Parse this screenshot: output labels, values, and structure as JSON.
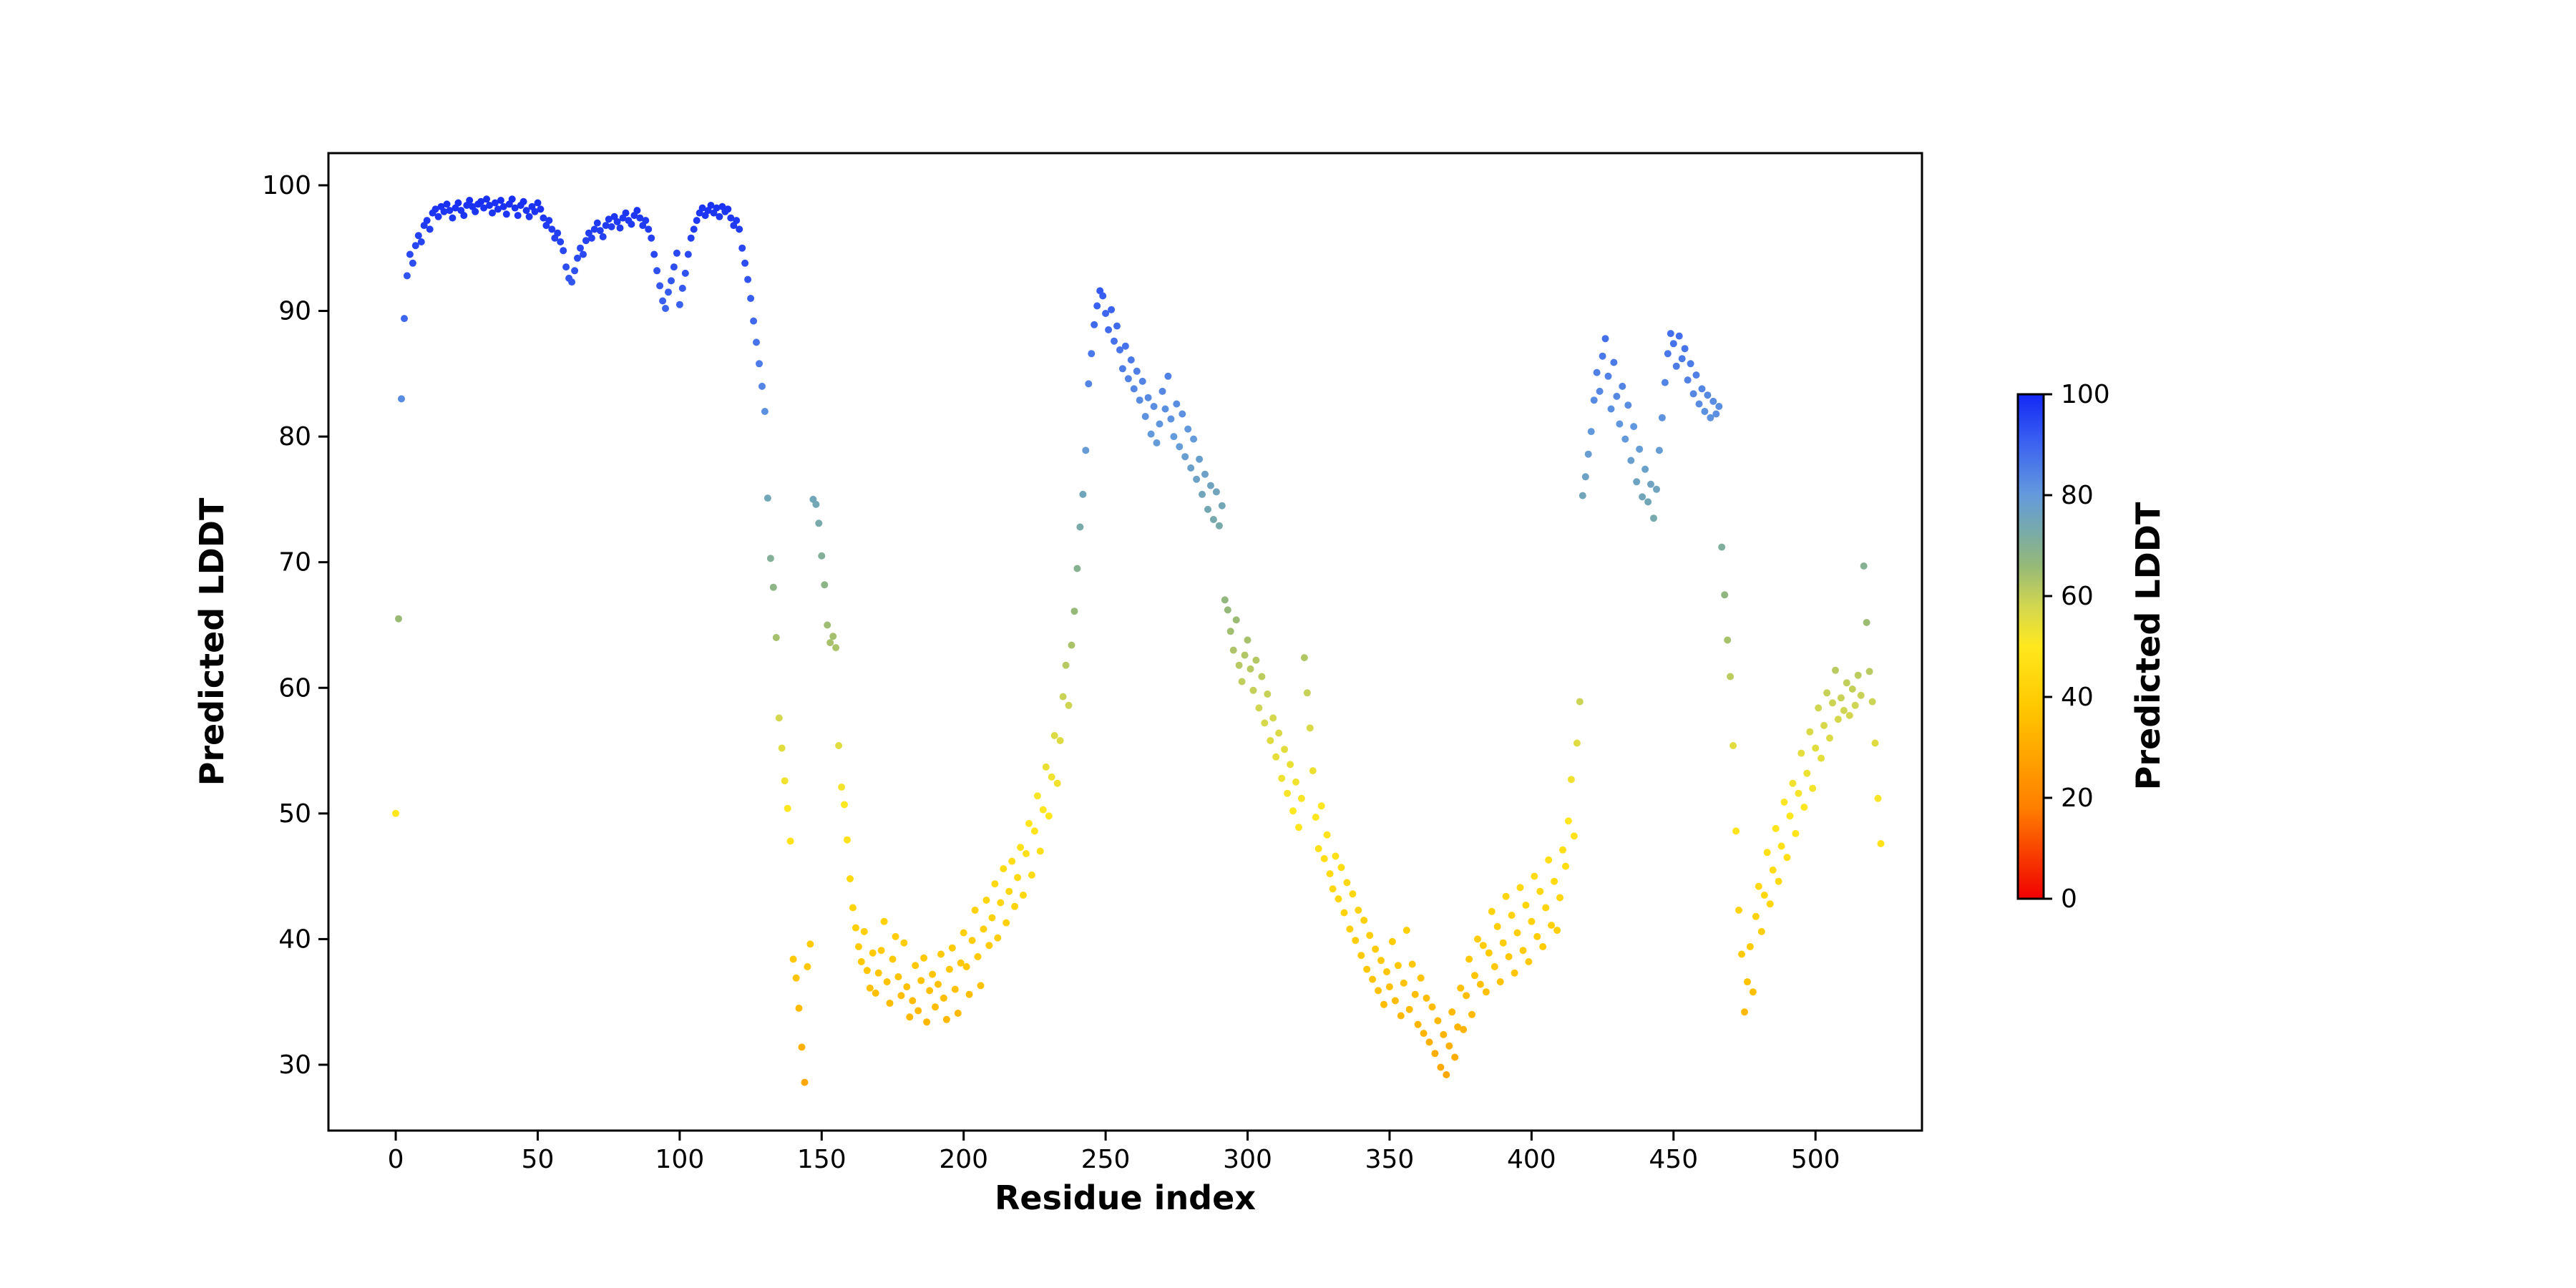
{
  "figure": {
    "background_color": "#ffffff",
    "text_color": "#000000"
  },
  "chart_data": {
    "type": "scatter",
    "title": "",
    "xlabel": "Residue index",
    "ylabel": "Predicted LDDT",
    "xlim": [
      -23.7,
      537.5
    ],
    "ylim": [
      24.76,
      102.56
    ],
    "x_ticks": [
      0,
      50,
      100,
      150,
      200,
      250,
      300,
      350,
      400,
      450,
      500
    ],
    "y_ticks": [
      30,
      40,
      50,
      60,
      70,
      80,
      90,
      100
    ],
    "grid": false,
    "legend": "none",
    "marker_diameter_px": 10,
    "x_start": 0,
    "x_step": 1,
    "y_values": [
      50.0,
      65.5,
      83.0,
      89.4,
      92.8,
      94.5,
      93.8,
      95.2,
      96.0,
      95.5,
      96.8,
      97.2,
      96.5,
      97.8,
      98.1,
      97.5,
      98.3,
      97.9,
      98.5,
      98.0,
      97.4,
      98.2,
      98.6,
      98.0,
      97.6,
      98.4,
      98.8,
      98.3,
      97.9,
      98.5,
      98.7,
      98.2,
      98.9,
      98.4,
      97.8,
      98.6,
      98.1,
      98.8,
      98.3,
      97.7,
      98.5,
      98.9,
      98.2,
      97.6,
      98.4,
      98.7,
      98.0,
      97.5,
      98.3,
      97.9,
      98.6,
      98.1,
      97.4,
      96.8,
      97.2,
      96.5,
      95.8,
      96.2,
      95.5,
      94.8,
      93.5,
      92.6,
      92.3,
      93.2,
      94.2,
      95.0,
      94.5,
      95.6,
      96.2,
      95.8,
      96.5,
      97.0,
      96.4,
      95.9,
      96.8,
      97.3,
      96.7,
      97.5,
      97.1,
      96.6,
      97.4,
      97.8,
      97.2,
      96.9,
      97.6,
      98.0,
      97.4,
      96.8,
      97.2,
      96.5,
      95.8,
      94.5,
      93.2,
      92.0,
      90.8,
      90.2,
      91.5,
      92.4,
      93.5,
      94.6,
      90.5,
      91.8,
      93.0,
      94.5,
      95.8,
      96.5,
      97.2,
      97.8,
      98.2,
      97.6,
      98.0,
      98.4,
      97.8,
      98.2,
      97.5,
      98.3,
      97.9,
      98.1,
      97.4,
      96.8,
      97.2,
      96.5,
      95.0,
      93.8,
      92.5,
      91.0,
      89.2,
      87.5,
      85.8,
      84.0,
      82.0,
      75.1,
      70.3,
      68.0,
      64.0,
      57.6,
      55.2,
      52.6,
      50.4,
      47.8,
      38.4,
      36.9,
      34.5,
      31.4,
      28.6,
      37.8,
      39.6,
      75.0,
      74.6,
      73.1,
      70.5,
      68.2,
      65.0,
      63.6,
      64.1,
      63.2,
      55.4,
      52.1,
      50.7,
      47.9,
      44.8,
      42.5,
      40.9,
      39.4,
      38.2,
      40.6,
      37.5,
      36.1,
      38.9,
      35.7,
      37.3,
      39.1,
      41.4,
      36.6,
      34.9,
      38.4,
      40.2,
      37.0,
      35.5,
      39.7,
      36.2,
      33.8,
      35.1,
      37.9,
      34.3,
      36.7,
      38.5,
      33.4,
      35.9,
      37.2,
      34.6,
      36.4,
      38.8,
      35.3,
      33.6,
      37.6,
      39.3,
      36.0,
      34.1,
      38.1,
      40.5,
      37.8,
      35.6,
      39.9,
      42.3,
      38.6,
      36.3,
      40.8,
      43.1,
      39.5,
      41.7,
      44.4,
      40.1,
      42.9,
      45.6,
      41.3,
      43.8,
      46.2,
      42.6,
      44.9,
      47.3,
      43.5,
      46.8,
      49.2,
      45.1,
      48.6,
      51.4,
      47.0,
      50.3,
      53.7,
      49.8,
      52.9,
      56.2,
      52.4,
      55.8,
      59.3,
      61.8,
      58.6,
      63.4,
      66.1,
      69.5,
      72.8,
      75.4,
      78.9,
      84.2,
      86.6,
      88.9,
      90.4,
      91.6,
      91.2,
      89.8,
      88.5,
      90.1,
      87.6,
      88.8,
      86.9,
      85.4,
      87.2,
      84.6,
      86.1,
      83.8,
      85.2,
      82.9,
      84.4,
      81.6,
      83.1,
      80.2,
      82.4,
      79.5,
      81.0,
      83.6,
      82.2,
      84.8,
      81.4,
      80.0,
      82.6,
      79.2,
      81.8,
      78.4,
      80.6,
      77.5,
      79.8,
      76.6,
      78.2,
      75.4,
      77.0,
      74.2,
      76.1,
      73.4,
      75.6,
      72.9,
      74.5,
      67.0,
      66.2,
      64.5,
      63.0,
      65.4,
      61.8,
      60.5,
      62.6,
      63.8,
      61.5,
      59.8,
      62.2,
      58.4,
      60.9,
      57.2,
      59.5,
      55.8,
      57.6,
      54.5,
      56.4,
      52.8,
      55.1,
      51.6,
      53.9,
      50.2,
      52.5,
      48.9,
      51.2,
      62.4,
      59.6,
      56.8,
      53.4,
      49.7,
      47.2,
      50.6,
      46.4,
      48.3,
      45.2,
      44.0,
      46.6,
      43.2,
      45.7,
      42.1,
      44.5,
      40.8,
      43.6,
      39.9,
      42.3,
      38.7,
      41.5,
      37.6,
      40.3,
      36.8,
      39.2,
      35.9,
      38.3,
      34.8,
      37.4,
      36.2,
      39.8,
      35.1,
      37.9,
      33.9,
      36.5,
      40.7,
      34.4,
      38.0,
      35.6,
      33.2,
      36.9,
      32.5,
      35.3,
      31.8,
      34.6,
      30.9,
      33.5,
      29.8,
      32.4,
      29.2,
      31.5,
      34.2,
      30.6,
      33.0,
      36.1,
      32.8,
      35.5,
      38.4,
      34.0,
      37.1,
      40.0,
      36.4,
      39.5,
      35.8,
      38.9,
      42.2,
      37.8,
      41.0,
      36.6,
      39.7,
      43.4,
      38.6,
      41.9,
      37.3,
      40.5,
      44.1,
      39.1,
      42.7,
      38.2,
      41.4,
      45.0,
      40.2,
      43.8,
      39.4,
      42.5,
      46.3,
      41.1,
      44.6,
      40.7,
      43.3,
      47.1,
      45.8,
      49.4,
      52.7,
      48.2,
      55.6,
      58.9,
      75.3,
      76.8,
      78.6,
      80.4,
      82.9,
      85.1,
      83.6,
      86.4,
      87.8,
      84.8,
      82.2,
      85.9,
      83.2,
      81.0,
      84.0,
      79.8,
      82.5,
      78.1,
      80.8,
      76.4,
      79.0,
      75.2,
      77.4,
      74.8,
      76.2,
      73.5,
      75.8,
      78.9,
      81.5,
      84.3,
      86.6,
      88.2,
      87.4,
      85.6,
      88.0,
      86.2,
      87.0,
      84.5,
      85.8,
      83.4,
      84.9,
      82.6,
      83.8,
      82.0,
      83.3,
      81.5,
      82.8,
      81.8,
      82.4,
      71.2,
      67.4,
      63.8,
      60.9,
      55.4,
      48.6,
      42.3,
      38.8,
      34.2,
      36.6,
      39.4,
      35.8,
      41.8,
      44.2,
      40.6,
      43.5,
      46.9,
      42.8,
      45.5,
      48.8,
      44.6,
      47.4,
      50.9,
      46.5,
      49.8,
      52.4,
      48.4,
      51.6,
      54.8,
      50.5,
      53.2,
      56.5,
      52.0,
      55.2,
      58.4,
      54.4,
      57.0,
      59.6,
      56.0,
      58.8,
      61.4,
      57.5,
      59.2,
      58.2,
      60.4,
      57.8,
      59.9,
      58.6,
      61.0,
      59.4,
      69.7,
      65.2,
      61.3,
      58.9,
      55.6,
      51.2,
      47.6
    ],
    "colorbar": {
      "label": "Predicted LDDT",
      "ticks": [
        0,
        20,
        40,
        60,
        80,
        100
      ],
      "vmin": 0,
      "vmax": 100,
      "gradient_stops": [
        {
          "t": 0.0,
          "color": "#f00000"
        },
        {
          "t": 0.18,
          "color": "#ff7f00"
        },
        {
          "t": 0.38,
          "color": "#ffc800"
        },
        {
          "t": 0.5,
          "color": "#ffe81e"
        },
        {
          "t": 0.58,
          "color": "#d2d750"
        },
        {
          "t": 0.66,
          "color": "#96b978"
        },
        {
          "t": 0.73,
          "color": "#78aaaa"
        },
        {
          "t": 0.8,
          "color": "#649bdc"
        },
        {
          "t": 0.9,
          "color": "#3c64f0"
        },
        {
          "t": 1.0,
          "color": "#1428f5"
        }
      ]
    }
  }
}
